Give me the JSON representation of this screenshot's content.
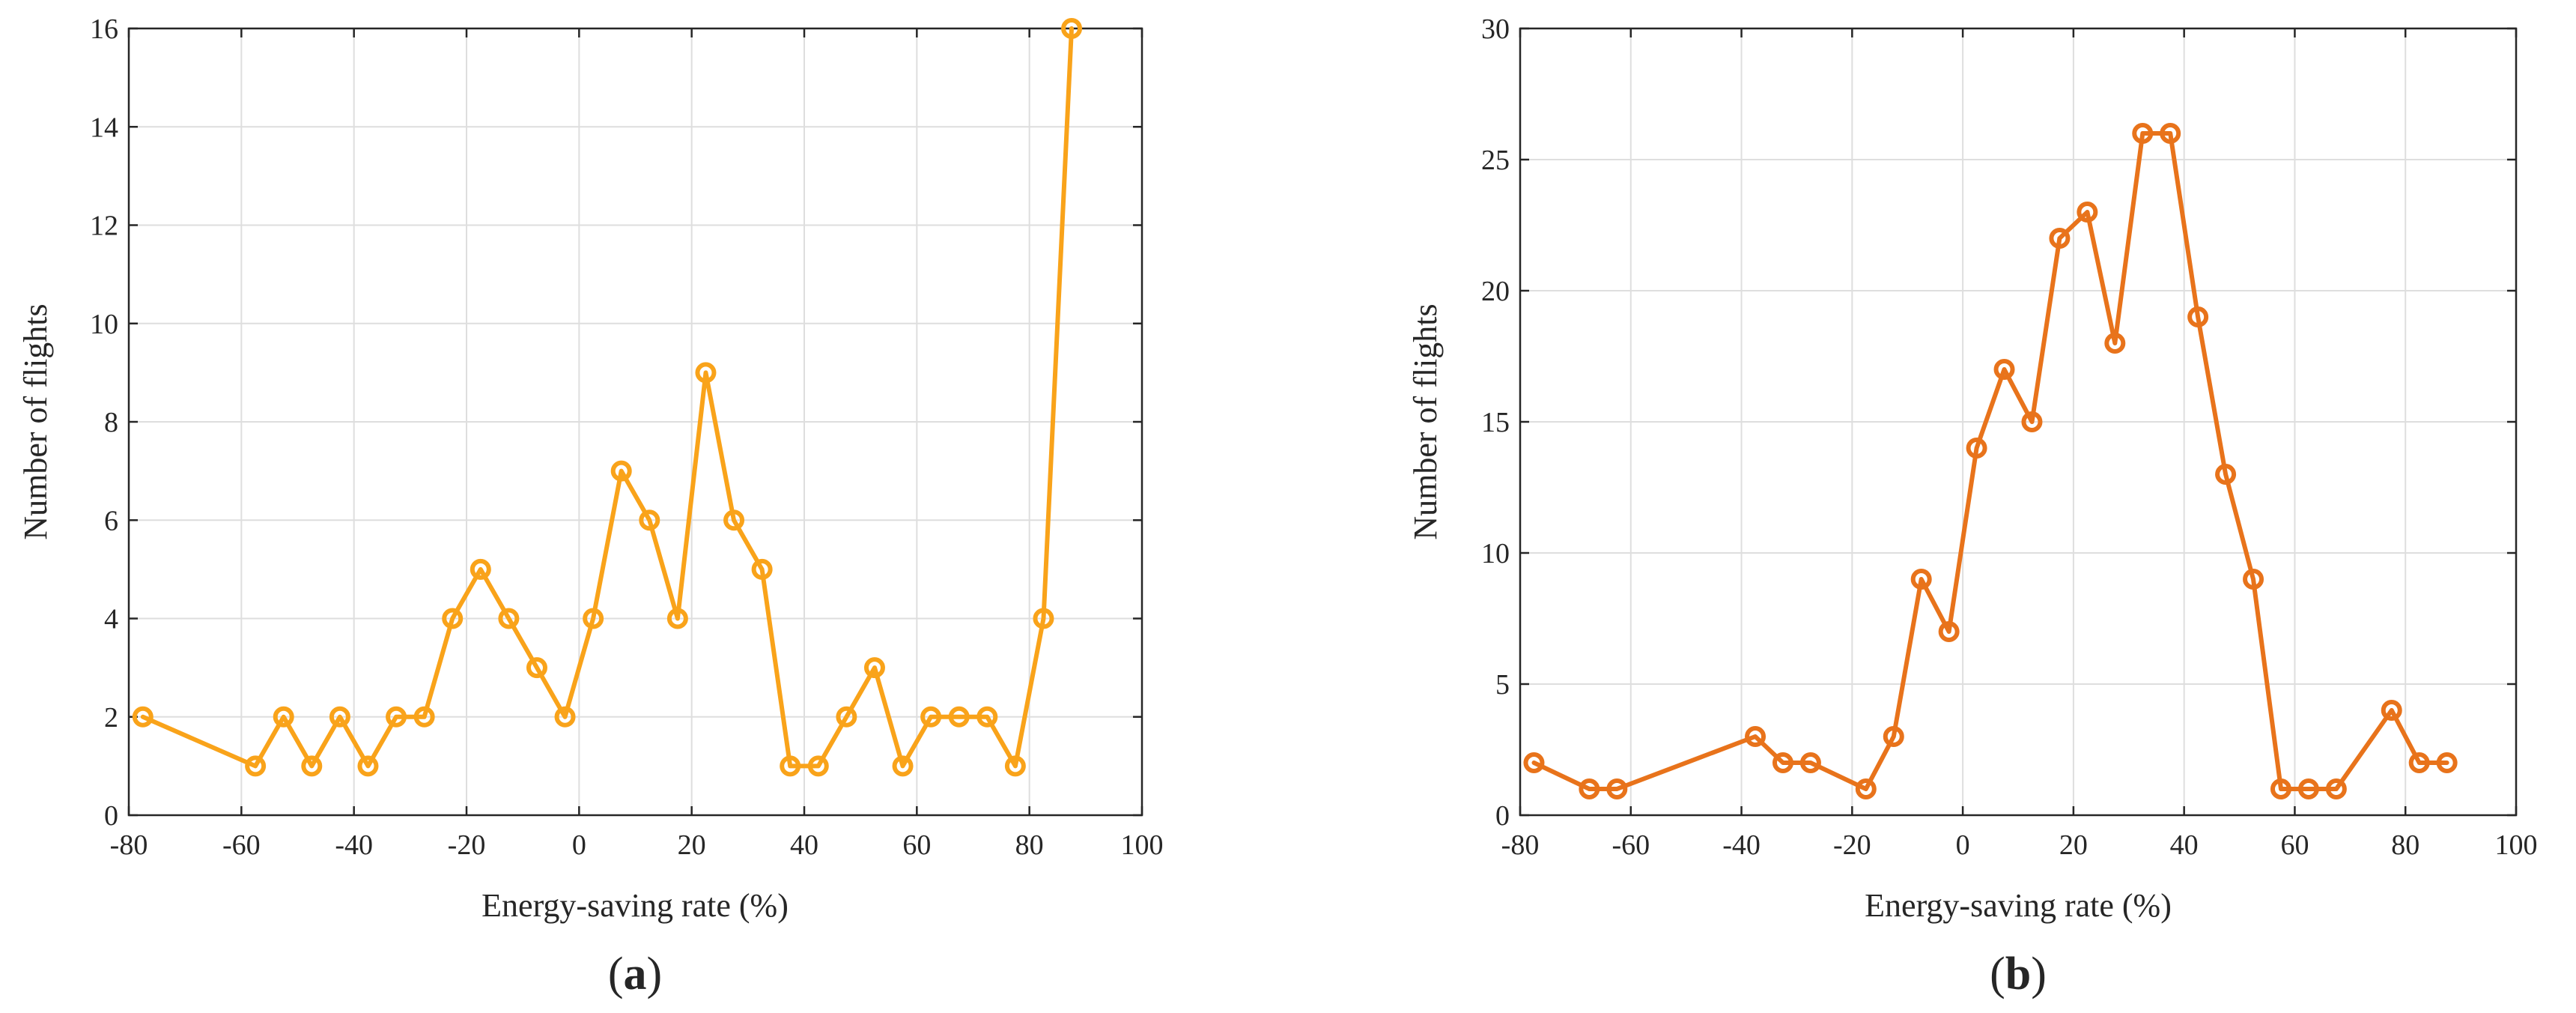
{
  "chart_data": [
    {
      "type": "line",
      "panel_label": "a",
      "xlabel": "Energy-saving rate (%)",
      "ylabel": "Number of flights",
      "xlim": [
        -80,
        100
      ],
      "ylim": [
        0,
        16
      ],
      "xticks": [
        -80,
        -60,
        -40,
        -20,
        0,
        20,
        40,
        60,
        80,
        100
      ],
      "yticks": [
        0,
        2,
        4,
        6,
        8,
        10,
        12,
        14,
        16
      ],
      "grid": true,
      "color": "#F9A31A",
      "x": [
        -77.5,
        -57.5,
        -52.5,
        -47.5,
        -42.5,
        -37.5,
        -32.5,
        -27.5,
        -22.5,
        -17.5,
        -12.5,
        -7.5,
        -2.5,
        2.5,
        7.5,
        12.5,
        17.5,
        22.5,
        27.5,
        32.5,
        37.5,
        42.5,
        47.5,
        52.5,
        57.5,
        62.5,
        67.5,
        72.5,
        77.5,
        82.5,
        87.5
      ],
      "y": [
        2,
        1,
        2,
        1,
        2,
        1,
        2,
        2,
        4,
        5,
        4,
        3,
        2,
        4,
        7,
        6,
        4,
        9,
        6,
        5,
        1,
        1,
        2,
        3,
        1,
        2,
        2,
        2,
        1,
        4,
        16
      ]
    },
    {
      "type": "line",
      "panel_label": "b",
      "xlabel": "Energy-saving rate (%)",
      "ylabel": "Number of flights",
      "xlim": [
        -80,
        100
      ],
      "ylim": [
        0,
        30
      ],
      "xticks": [
        -80,
        -60,
        -40,
        -20,
        0,
        20,
        40,
        60,
        80,
        100
      ],
      "yticks": [
        0,
        5,
        10,
        15,
        20,
        25,
        30
      ],
      "grid": true,
      "color": "#E8731B",
      "x": [
        -77.5,
        -67.5,
        -62.5,
        -37.5,
        -32.5,
        -27.5,
        -17.5,
        -12.5,
        -7.5,
        -2.5,
        2.5,
        7.5,
        12.5,
        17.5,
        22.5,
        27.5,
        32.5,
        37.5,
        42.5,
        47.5,
        52.5,
        57.5,
        62.5,
        67.5,
        77.5,
        82.5,
        87.5
      ],
      "y": [
        2,
        1,
        1,
        3,
        2,
        2,
        1,
        3,
        9,
        7,
        14,
        17,
        15,
        22,
        23,
        18,
        26,
        26,
        19,
        13,
        9,
        1,
        1,
        1,
        4,
        2,
        2
      ]
    }
  ]
}
